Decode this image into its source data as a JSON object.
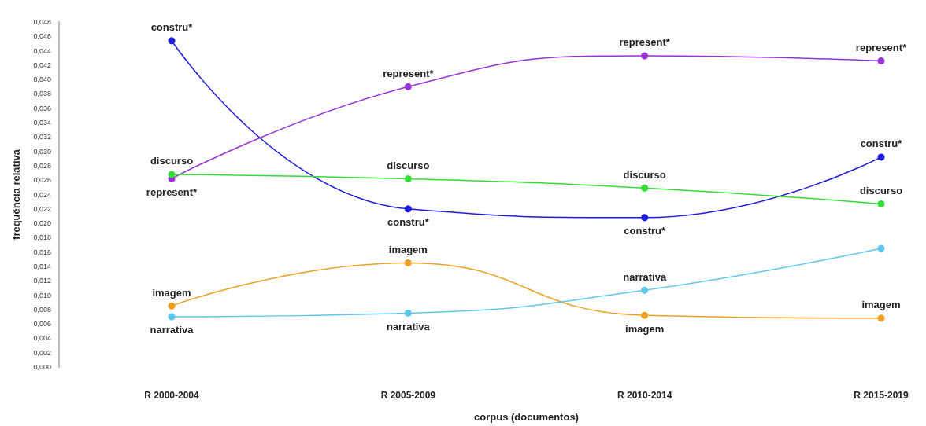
{
  "chart_data": {
    "type": "line",
    "xlabel": "corpus (documentos)",
    "ylabel": "frequência relativa",
    "categories": [
      "R 2000-2004",
      "R 2005-2009",
      "R 2010-2014",
      "R 2015-2019"
    ],
    "series": [
      {
        "color": "#1c1ce0",
        "values": [
          0.0454,
          0.022,
          0.0208,
          0.0292
        ],
        "value_labels": [
          "constru*",
          "constru*",
          "constru*",
          "constru*"
        ]
      },
      {
        "color": "#9932d8",
        "values": [
          0.0262,
          0.039,
          0.0433,
          0.0426
        ],
        "value_labels": [
          "represent*",
          "represent*",
          "represent*",
          "represent*"
        ]
      },
      {
        "color": "#33dd33",
        "values": [
          0.0268,
          0.0262,
          0.0249,
          0.0227
        ],
        "value_labels": [
          "discurso",
          "discurso",
          "discurso",
          "discurso"
        ]
      },
      {
        "color": "#f0a020",
        "values": [
          0.0085,
          0.0145,
          0.0072,
          0.0068
        ],
        "value_labels": [
          "imagem",
          "imagem",
          "imagem",
          "imagem"
        ]
      },
      {
        "color": "#5cc8ee",
        "values": [
          0.007,
          0.0075,
          0.0107,
          0.0165
        ],
        "value_labels": [
          "narrativa",
          "narrativa",
          "narrativa",
          null
        ]
      }
    ],
    "ylim": [
      0,
      0.048
    ],
    "yticks": [
      {
        "value": 0,
        "label": "0,000"
      },
      {
        "value": 0.002,
        "label": "0,002"
      },
      {
        "value": 0.004,
        "label": "0,004"
      },
      {
        "value": 0.006,
        "label": "0,006"
      },
      {
        "value": 0.008,
        "label": "0,008"
      },
      {
        "value": 0.01,
        "label": "0,010"
      },
      {
        "value": 0.012,
        "label": "0,012"
      },
      {
        "value": 0.014,
        "label": "0,014"
      },
      {
        "value": 0.016,
        "label": "0,016"
      },
      {
        "value": 0.018,
        "label": "0,018"
      },
      {
        "value": 0.02,
        "label": "0,020"
      },
      {
        "value": 0.022,
        "label": "0,022"
      },
      {
        "value": 0.024,
        "label": "0,024"
      },
      {
        "value": 0.026,
        "label": "0,026"
      },
      {
        "value": 0.028,
        "label": "0,028"
      },
      {
        "value": 0.03,
        "label": "0,030"
      },
      {
        "value": 0.032,
        "label": "0,032"
      },
      {
        "value": 0.034,
        "label": "0,034"
      },
      {
        "value": 0.036,
        "label": "0,036"
      },
      {
        "value": 0.038,
        "label": "0,038"
      },
      {
        "value": 0.04,
        "label": "0,040"
      },
      {
        "value": 0.042,
        "label": "0,042"
      },
      {
        "value": 0.044,
        "label": "0,044"
      },
      {
        "value": 0.046,
        "label": "0,046"
      },
      {
        "value": 0.048,
        "label": "0,048"
      }
    ],
    "grid": false,
    "marker": "circle",
    "line_style": "solid"
  }
}
